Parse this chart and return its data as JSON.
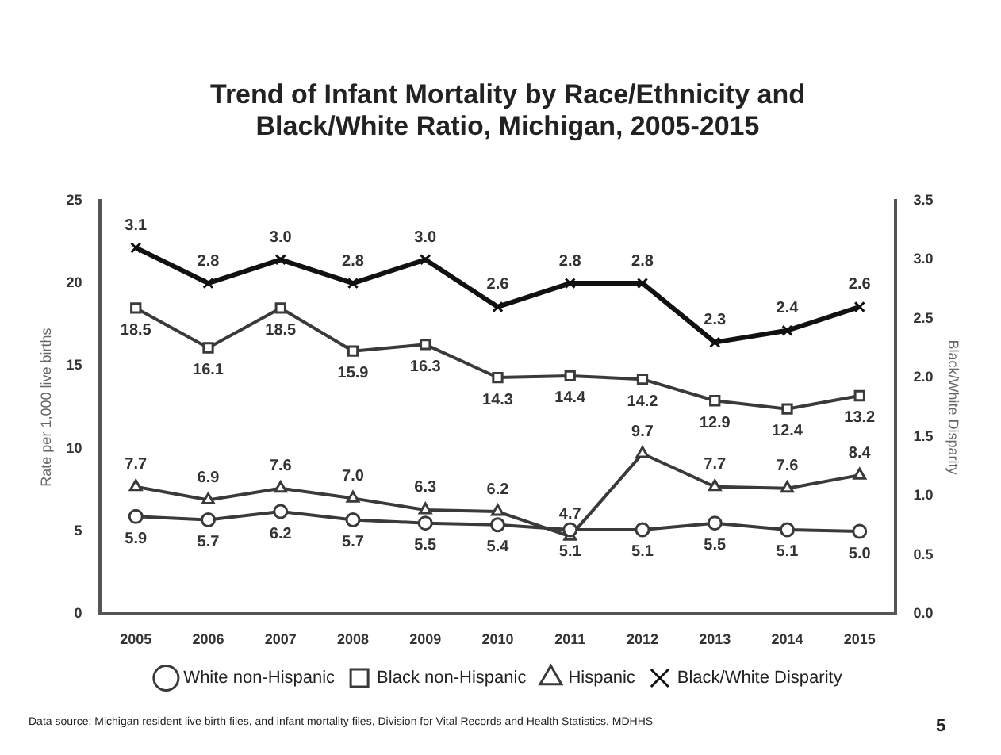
{
  "chart_data": {
    "type": "line",
    "title": "Trend of Infant Mortality by Race/Ethnicity and Black/White Ratio, Michigan, 2005-2015",
    "categories": [
      "2005",
      "2006",
      "2007",
      "2008",
      "2009",
      "2010",
      "2011",
      "2012",
      "2013",
      "2014",
      "2015"
    ],
    "ylabel": "Rate per 1,000 live births",
    "y2label": "Black/White Disparity",
    "ylim": [
      0,
      25
    ],
    "yticks": [
      0,
      5,
      10,
      15,
      20,
      25
    ],
    "y2lim": [
      0,
      3.5
    ],
    "y2ticks": [
      {
        "value": 0,
        "label": "0.0"
      },
      {
        "value": 0.5,
        "label": "0.5"
      },
      {
        "value": 1,
        "label": "1.0"
      },
      {
        "value": 1.5,
        "label": "1.5"
      },
      {
        "value": 2,
        "label": "2.0"
      },
      {
        "value": 2.5,
        "label": "2.5"
      },
      {
        "value": 3,
        "label": "3.0"
      },
      {
        "value": 3.5,
        "label": "3.5"
      }
    ],
    "series": [
      {
        "name": "White non-Hispanic",
        "color": "#3a3a3a",
        "marker": "circle",
        "values": [
          5.9,
          5.7,
          6.2,
          5.7,
          5.5,
          5.4,
          5.1,
          5.1,
          5.5,
          5.1,
          5.0
        ],
        "value_labels": [
          "5.9",
          "5.7",
          "6.2",
          "5.7",
          "5.5",
          "5.4",
          "5.1",
          "5.1",
          "5.5",
          "5.1",
          "5.0"
        ]
      },
      {
        "name": "Black non-Hispanic",
        "color": "#3a3a3a",
        "marker": "square",
        "values": [
          18.5,
          16.1,
          18.5,
          15.9,
          16.3,
          14.3,
          14.4,
          14.2,
          12.9,
          12.4,
          13.2
        ],
        "value_labels": [
          "18.5",
          "16.1",
          "18.5",
          "15.9",
          "16.3",
          "14.3",
          "14.4",
          "14.2",
          "12.9",
          "12.4",
          "13.2"
        ]
      },
      {
        "name": "Hispanic",
        "color": "#3a3a3a",
        "marker": "triangle",
        "values": [
          7.7,
          6.9,
          7.6,
          7.0,
          6.3,
          6.2,
          4.7,
          9.7,
          7.7,
          7.6,
          8.4
        ],
        "value_labels": [
          "7.7",
          "6.9",
          "7.6",
          "7.0",
          "6.3",
          "6.2",
          "4.7",
          "9.7",
          "7.7",
          "7.6",
          "8.4"
        ]
      },
      {
        "name": "Black/White Disparity",
        "color": "#111111",
        "marker": "cross",
        "axis": "y2",
        "values": [
          3.1,
          2.8,
          3.0,
          2.8,
          3.0,
          2.6,
          2.8,
          2.8,
          2.3,
          2.4,
          2.6
        ],
        "value_labels": [
          "3.1",
          "2.8",
          "3.0",
          "2.8",
          "3.0",
          "2.6",
          "2.8",
          "2.8",
          "2.3",
          "2.4",
          "2.6"
        ]
      }
    ],
    "grid": false,
    "legend": "bottom",
    "line_style": "solid",
    "annotations": [
      "Data source: Michigan resident live birth files, and infant mortality files, Division for Vital Records and Health Statistics, MDHHS",
      "5"
    ]
  }
}
